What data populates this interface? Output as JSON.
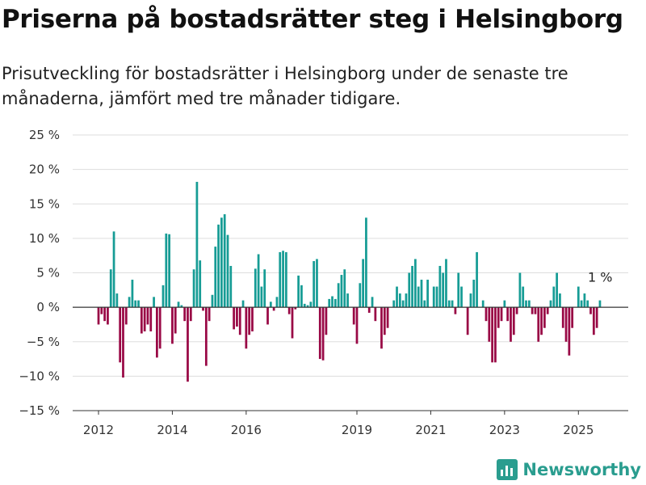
{
  "title": "Priserna på bostadsrätter steg i Helsingborg",
  "subtitle": "Prisutveckling för bostadsrätter i Helsingborg under de senaste tre månaderna, jämfört med tre månader tidigare.",
  "brand": "Newsworthy",
  "colors": {
    "positive": "#169c95",
    "negative": "#990845",
    "grid": "#dddddd",
    "zero_line": "#333333",
    "brand": "#2a9d8f"
  },
  "chart_data": {
    "type": "bar",
    "yunit": "%",
    "ylim": [
      -15,
      25
    ],
    "yticks": [
      {
        "value": 25,
        "label": "25 %"
      },
      {
        "value": 20,
        "label": "20 %"
      },
      {
        "value": 15,
        "label": "15 %"
      },
      {
        "value": 10,
        "label": "10 %"
      },
      {
        "value": 5,
        "label": "5 %"
      },
      {
        "value": 0,
        "label": "0 %"
      },
      {
        "value": -5,
        "label": "−5 %"
      },
      {
        "value": -10,
        "label": "−10 %"
      },
      {
        "value": -15,
        "label": "−15 %"
      }
    ],
    "xlim": [
      2011.3,
      2026.35
    ],
    "xticks": [
      {
        "value": 2012,
        "label": "2012"
      },
      {
        "value": 2014,
        "label": "2014"
      },
      {
        "value": 2016,
        "label": "2016"
      },
      {
        "value": 2019,
        "label": "2019"
      },
      {
        "value": 2021,
        "label": "2021"
      },
      {
        "value": 2023,
        "label": "2023"
      },
      {
        "value": 2025,
        "label": "2025"
      }
    ],
    "grid": true,
    "start": "2012-01",
    "frequency": "monthly",
    "values": [
      -2.5,
      -1.0,
      -2.0,
      -2.5,
      5.5,
      11.0,
      2.0,
      -8.0,
      -10.2,
      -2.5,
      1.5,
      4.0,
      1.0,
      1.0,
      -3.8,
      -3.5,
      -2.5,
      -3.5,
      1.5,
      -7.3,
      -6.0,
      3.2,
      10.7,
      10.6,
      -5.3,
      -3.8,
      0.8,
      0.3,
      -2.0,
      -10.8,
      -2.0,
      5.5,
      18.2,
      6.8,
      -0.5,
      -8.5,
      -2.0,
      1.8,
      8.8,
      12.0,
      13.0,
      13.5,
      10.5,
      6.0,
      -3.2,
      -2.8,
      -4.0,
      1.0,
      -6.0,
      -4.0,
      -3.5,
      5.6,
      7.7,
      3.0,
      5.5,
      -2.5,
      0.8,
      -0.5,
      1.5,
      8.0,
      8.2,
      8.0,
      -1.0,
      -4.5,
      -0.3,
      4.6,
      3.2,
      0.5,
      0.3,
      0.8,
      6.7,
      7.0,
      -7.5,
      -7.7,
      -4.0,
      1.2,
      1.6,
      1.2,
      3.5,
      4.7,
      5.5,
      2.0,
      0.0,
      -2.5,
      -5.3,
      3.5,
      7.0,
      13.0,
      -0.8,
      1.5,
      -2.0,
      0.0,
      -6.0,
      -4.0,
      -3.0,
      0.0,
      1.0,
      3.0,
      2.0,
      1.0,
      2.0,
      5.0,
      6.0,
      7.0,
      3.0,
      4.0,
      1.0,
      4.0,
      0.0,
      3.0,
      3.0,
      6.0,
      5.0,
      7.0,
      1.0,
      1.0,
      -1.0,
      5.0,
      3.0,
      0.0,
      -4.0,
      2.0,
      4.0,
      8.0,
      0.0,
      1.0,
      -2.0,
      -5.0,
      -8.0,
      -8.0,
      -3.0,
      -2.0,
      1.0,
      -2.0,
      -5.0,
      -4.0,
      -1.0,
      5.0,
      3.0,
      1.0,
      1.0,
      -1.0,
      -1.0,
      -5.0,
      -4.0,
      -3.0,
      -1.0,
      1.0,
      3.0,
      5.0,
      2.0,
      -3.0,
      -5.0,
      -7.0,
      -3.0,
      0.0,
      3.0,
      1.0,
      2.0,
      1.0,
      -1.0,
      -4.0,
      -3.0,
      1.0
    ],
    "annotations": [
      {
        "text": "1 %",
        "date": "2025-08",
        "value": 1.0
      }
    ]
  }
}
